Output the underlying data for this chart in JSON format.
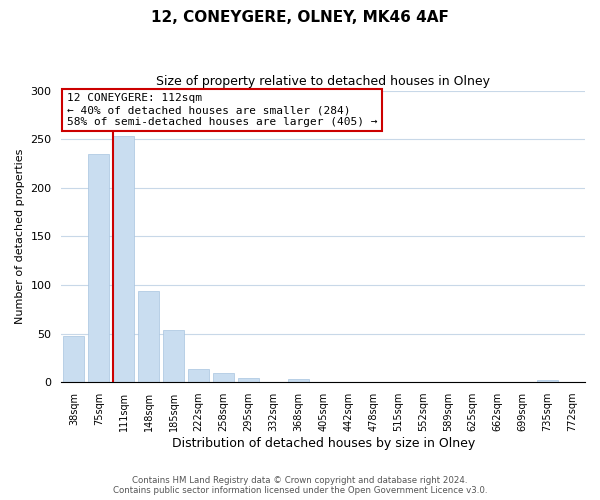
{
  "title": "12, CONEYGERE, OLNEY, MK46 4AF",
  "subtitle": "Size of property relative to detached houses in Olney",
  "xlabel": "Distribution of detached houses by size in Olney",
  "ylabel": "Number of detached properties",
  "bar_labels": [
    "38sqm",
    "75sqm",
    "111sqm",
    "148sqm",
    "185sqm",
    "222sqm",
    "258sqm",
    "295sqm",
    "332sqm",
    "368sqm",
    "405sqm",
    "442sqm",
    "478sqm",
    "515sqm",
    "552sqm",
    "589sqm",
    "625sqm",
    "662sqm",
    "699sqm",
    "735sqm",
    "772sqm"
  ],
  "bar_heights": [
    48,
    235,
    253,
    94,
    54,
    14,
    10,
    4,
    0,
    3,
    0,
    0,
    0,
    0,
    0,
    0,
    0,
    0,
    0,
    2,
    0
  ],
  "bar_color": "#c9ddf0",
  "bar_edge_color": "#a8c4e0",
  "marker_bar_index": 2,
  "marker_color": "#cc0000",
  "annotation_title": "12 CONEYGERE: 112sqm",
  "annotation_line1": "← 40% of detached houses are smaller (284)",
  "annotation_line2": "58% of semi-detached houses are larger (405) →",
  "annotation_box_color": "#ffffff",
  "annotation_box_edge": "#cc0000",
  "footer_line1": "Contains HM Land Registry data © Crown copyright and database right 2024.",
  "footer_line2": "Contains public sector information licensed under the Open Government Licence v3.0.",
  "ylim": [
    0,
    300
  ],
  "yticks": [
    0,
    50,
    100,
    150,
    200,
    250,
    300
  ],
  "background_color": "#ffffff",
  "grid_color": "#c8d8e8"
}
